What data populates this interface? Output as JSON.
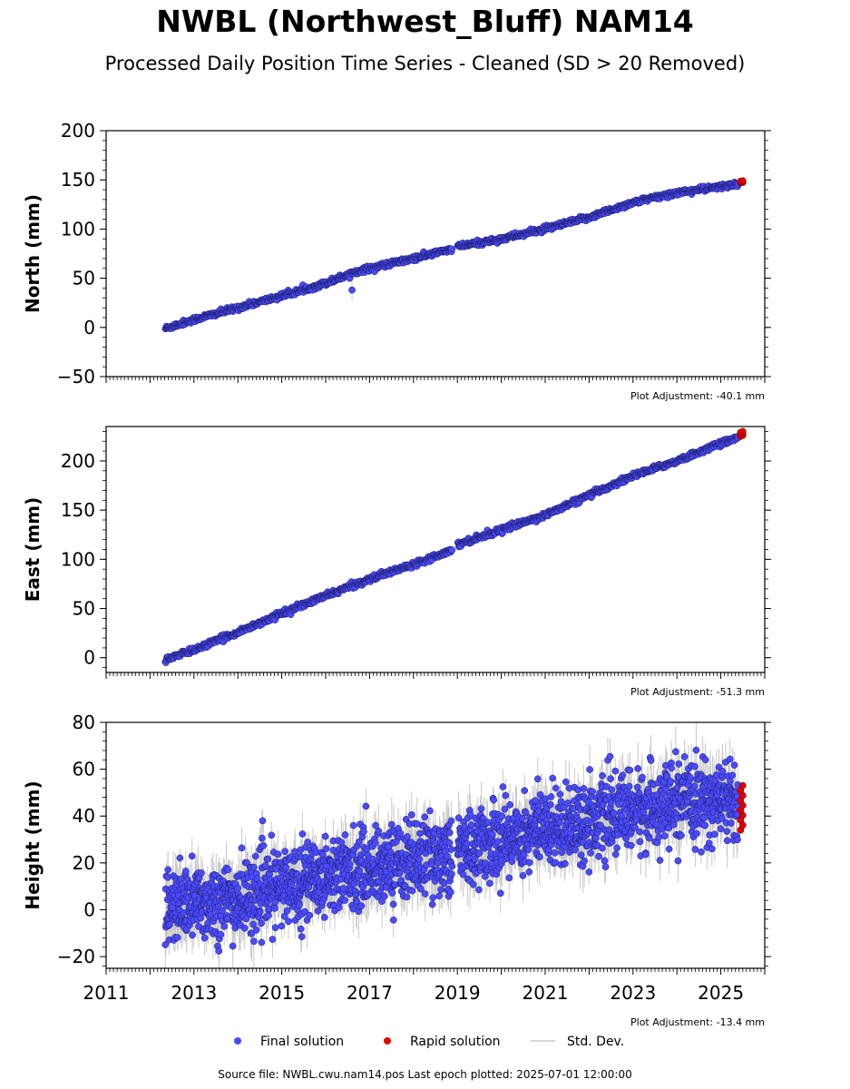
{
  "title": "NWBL (Northwest_Bluff) NAM14",
  "subtitle": "Processed Daily Position Time Series - Cleaned (SD > 20 Removed)",
  "source": "Source file: NWBL.cwu.nam14.pos  Last epoch plotted: 2025-07-01 12:00:00",
  "colors": {
    "final": "#4a4aff",
    "rapid": "#e00000",
    "std": "#c8c8c8"
  },
  "legend": [
    {
      "label": "Final solution",
      "marker": "final"
    },
    {
      "label": "Rapid solution",
      "marker": "rapid"
    },
    {
      "label": "Std. Dev.",
      "marker": "std"
    }
  ],
  "chart_data": [
    {
      "type": "scatter",
      "ylabel": "North (mm)",
      "ylim": [
        -50,
        200
      ],
      "yticks": [
        -50,
        0,
        50,
        100,
        150,
        200
      ],
      "xlim": [
        2011,
        2026
      ],
      "adjustment": "Plot Adjustment: -40.1 mm",
      "series": [
        {
          "name": "Final solution",
          "x": [
            2012.35,
            2013.0,
            2014.0,
            2015.0,
            2016.0,
            2016.7,
            2017.0,
            2017.6,
            2018.0,
            2018.9,
            2019.0,
            2020.0,
            2021.0,
            2022.0,
            2023.0,
            2024.0,
            2025.0,
            2025.4
          ],
          "y": [
            -1,
            8,
            20,
            32,
            45,
            57,
            60,
            66,
            70,
            80,
            82,
            90,
            100,
            112,
            127,
            137,
            143,
            146
          ]
        },
        {
          "name": "Rapid solution",
          "x": [
            2025.45,
            2025.5
          ],
          "y": [
            147,
            149
          ]
        }
      ],
      "outliers": [
        {
          "x": 2016.6,
          "y": 38
        }
      ]
    },
    {
      "type": "scatter",
      "ylabel": "East (mm)",
      "ylim": [
        -15,
        235
      ],
      "yticks": [
        0,
        50,
        100,
        150,
        200
      ],
      "xlim": [
        2011,
        2026
      ],
      "adjustment": "Plot Adjustment: -51.3 mm",
      "series": [
        {
          "name": "Final solution",
          "x": [
            2012.35,
            2013.0,
            2014.0,
            2015.0,
            2016.0,
            2017.0,
            2018.0,
            2018.9,
            2019.0,
            2020.0,
            2021.0,
            2022.0,
            2023.0,
            2024.0,
            2025.0,
            2025.4
          ],
          "y": [
            -2,
            8,
            26,
            45,
            63,
            80,
            95,
            110,
            115,
            130,
            145,
            165,
            185,
            200,
            218,
            224
          ]
        },
        {
          "name": "Rapid solution",
          "x": [
            2025.45,
            2025.5
          ],
          "y": [
            225,
            230
          ]
        }
      ]
    },
    {
      "type": "scatter",
      "ylabel": "Height (mm)",
      "ylim": [
        -25,
        80
      ],
      "yticks": [
        -20,
        0,
        20,
        40,
        60,
        80
      ],
      "xlim": [
        2011,
        2026
      ],
      "xticks": [
        2011,
        2013,
        2015,
        2017,
        2019,
        2021,
        2023,
        2025
      ],
      "adjustment": "Plot Adjustment: -13.4 mm",
      "series": [
        {
          "name": "Final solution",
          "x": [
            2012.35,
            2013.0,
            2014.0,
            2015.0,
            2016.0,
            2017.0,
            2018.0,
            2018.9,
            2019.0,
            2020.0,
            2021.0,
            2022.0,
            2023.0,
            2024.0,
            2025.0,
            2025.4
          ],
          "y": [
            0,
            3,
            4,
            10,
            15,
            18,
            22,
            24,
            25,
            30,
            35,
            38,
            42,
            45,
            47,
            46
          ],
          "scatter_sd": 8
        },
        {
          "name": "Rapid solution",
          "x": [
            2025.45,
            2025.5
          ],
          "y": [
            34,
            53
          ]
        }
      ]
    }
  ]
}
